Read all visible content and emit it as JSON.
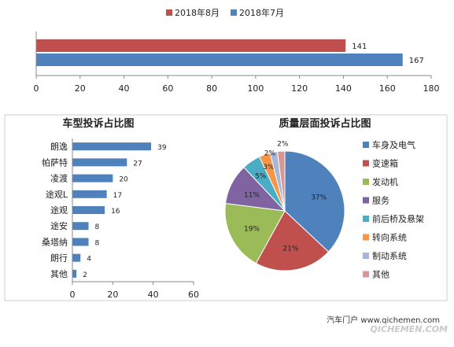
{
  "chart_data": [
    {
      "type": "bar",
      "orientation": "horizontal",
      "title": "",
      "categories": [
        ""
      ],
      "series": [
        {
          "name": "2018年8月",
          "values": [
            141
          ],
          "color": "#c0504d"
        },
        {
          "name": "2018年7月",
          "values": [
            167
          ],
          "color": "#4f81bd"
        }
      ],
      "xlim": [
        0,
        180
      ],
      "xticks": [
        "0",
        "20",
        "40",
        "60",
        "80",
        "100",
        "120",
        "140",
        "160",
        "180"
      ],
      "data_labels": [
        "141",
        "167"
      ],
      "legend": "top-center",
      "grid": false
    },
    {
      "type": "bar",
      "orientation": "horizontal",
      "title": "车型投诉占比图",
      "categories": [
        "朗逸",
        "帕萨特",
        "凌渡",
        "途观L",
        "途观",
        "途安",
        "桑塔纳",
        "朗行",
        "其他"
      ],
      "values": [
        39,
        27,
        20,
        17,
        16,
        8,
        8,
        4,
        2
      ],
      "value_labels": [
        "39",
        "27",
        "20",
        "17",
        "16",
        "8",
        "8",
        "4",
        "2"
      ],
      "xlim": [
        0,
        60
      ],
      "xticks": [
        "0",
        "20",
        "40",
        "60"
      ],
      "color": "#4f81bd",
      "grid": false
    },
    {
      "type": "pie",
      "title": "质量层面投诉占比图",
      "labels": [
        "车身及电气",
        "变速箱",
        "发动机",
        "服务",
        "前后桥及悬架",
        "转向系统",
        "制动系统",
        "其他"
      ],
      "values": [
        37,
        21,
        19,
        11,
        5,
        3,
        2,
        2
      ],
      "value_labels": [
        "37%",
        "21%",
        "19%",
        "11%",
        "5%",
        "3%",
        "2%",
        "2%"
      ],
      "colors": [
        "#4f81bd",
        "#c0504d",
        "#9bbb59",
        "#8064a2",
        "#4bacc6",
        "#f79646",
        "#a5b6d7",
        "#d99694"
      ],
      "legend": "right"
    }
  ],
  "footer": {
    "text": "汽车门户 www.qichemen.com",
    "watermark": "QICHEMEN.COM"
  }
}
